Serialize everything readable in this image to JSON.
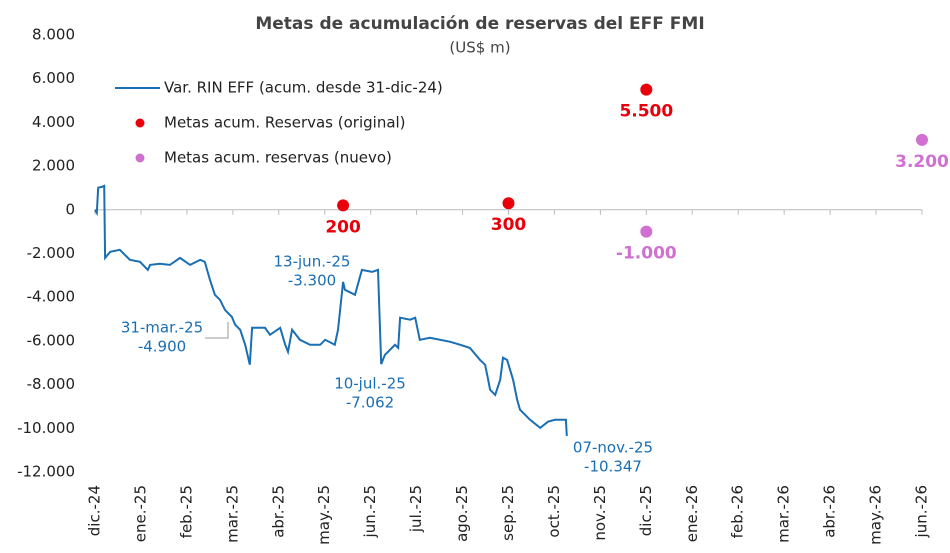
{
  "chart_data": {
    "type": "line",
    "title": "Metas de acumulación de reservas del EFF FMI",
    "subtitle": "(US$ m)",
    "xlim": [
      0,
      18
    ],
    "xticks": [
      {
        "value": 0,
        "label": "dic.-24"
      },
      {
        "value": 1,
        "label": "ene.-25"
      },
      {
        "value": 2,
        "label": "feb.-25"
      },
      {
        "value": 3,
        "label": "mar.-25"
      },
      {
        "value": 4,
        "label": "abr.-25"
      },
      {
        "value": 5,
        "label": "may.-25"
      },
      {
        "value": 6,
        "label": "jun.-25"
      },
      {
        "value": 7,
        "label": "jul.-25"
      },
      {
        "value": 8,
        "label": "ago.-25"
      },
      {
        "value": 9,
        "label": "sep.-25"
      },
      {
        "value": 10,
        "label": "oct.-25"
      },
      {
        "value": 11,
        "label": "nov.-25"
      },
      {
        "value": 12,
        "label": "dic.-25"
      },
      {
        "value": 13,
        "label": "ene.-26"
      },
      {
        "value": 14,
        "label": "feb.-26"
      },
      {
        "value": 15,
        "label": "mar.-26"
      },
      {
        "value": 16,
        "label": "abr.-26"
      },
      {
        "value": 17,
        "label": "may.-26"
      },
      {
        "value": 18,
        "label": "jun.-26"
      }
    ],
    "ylim": [
      -12000,
      8000
    ],
    "yticks": [
      {
        "value": -12000,
        "label": "-12.000"
      },
      {
        "value": -10000,
        "label": "-10.000"
      },
      {
        "value": -8000,
        "label": "-8.000"
      },
      {
        "value": -6000,
        "label": "-6.000"
      },
      {
        "value": -4000,
        "label": "-4.000"
      },
      {
        "value": -2000,
        "label": "-2.000"
      },
      0,
      {
        "value": 2000,
        "label": "2.000"
      },
      {
        "value": 4000,
        "label": "4.000"
      },
      {
        "value": 6000,
        "label": "6.000"
      },
      {
        "value": 8000,
        "label": "8.000"
      }
    ],
    "series": [
      {
        "name": "Var. RIN EFF (acum. desde 31-dic-24)",
        "type": "line",
        "color": "#1a6eb3",
        "x": [
          0,
          0.04,
          0.07,
          0.15,
          0.2,
          0.22,
          0.33,
          0.54,
          0.76,
          0.98,
          1.15,
          1.2,
          1.41,
          1.63,
          1.85,
          2.07,
          2.29,
          2.39,
          2.44,
          2.5,
          2.61,
          2.72,
          2.83,
          2.98,
          3.05,
          3.16,
          3.27,
          3.37,
          3.42,
          3.7,
          3.81,
          4.03,
          4.14,
          4.2,
          4.29,
          4.46,
          4.68,
          4.9,
          5.01,
          5.22,
          5.29,
          5.4,
          5.44,
          5.66,
          5.72,
          5.81,
          6.03,
          6.16,
          6.23,
          6.31,
          6.53,
          6.6,
          6.64,
          6.86,
          6.97,
          7.07,
          7.29,
          7.73,
          7.95,
          8.16,
          8.38,
          8.49,
          8.55,
          8.6,
          8.71,
          8.82,
          8.88,
          8.97,
          9.1,
          9.19,
          9.25,
          9.47,
          9.69,
          9.86,
          10.01,
          10.19,
          10.25,
          10.27
        ],
        "values": [
          0,
          -140,
          1010,
          1050,
          1100,
          -2200,
          -1920,
          -1830,
          -2290,
          -2380,
          -2750,
          -2520,
          -2470,
          -2520,
          -2200,
          -2520,
          -2290,
          -2380,
          -2750,
          -3200,
          -3890,
          -4120,
          -4580,
          -4900,
          -5260,
          -5490,
          -6180,
          -7090,
          -5400,
          -5400,
          -5720,
          -5400,
          -6180,
          -6500,
          -5490,
          -5950,
          -6180,
          -6180,
          -5950,
          -6180,
          -5490,
          -3300,
          -3660,
          -3890,
          -3430,
          -2750,
          -2840,
          -2750,
          -7062,
          -6640,
          -6180,
          -6320,
          -4940,
          -5030,
          -4940,
          -5950,
          -5860,
          -6040,
          -6180,
          -6320,
          -6870,
          -7090,
          -7690,
          -8240,
          -8470,
          -7780,
          -6770,
          -6870,
          -7780,
          -8700,
          -9150,
          -9610,
          -9980,
          -9700,
          -9610,
          -9610,
          -9610,
          -10347
        ]
      },
      {
        "name": "Metas acum. Reservas (original)",
        "type": "scatter",
        "color": "#e8000b",
        "x": [
          5.4,
          9,
          12
        ],
        "values": [
          200,
          300,
          5500
        ],
        "value_labels": [
          "200",
          "300",
          "5.500"
        ]
      },
      {
        "name": "Metas acum. reservas (nuevo)",
        "type": "scatter",
        "color": "#d070d0",
        "x": [
          12,
          18
        ],
        "values": [
          -1000,
          3200
        ],
        "value_labels": [
          "-1.000",
          "3.200"
        ]
      }
    ],
    "annotations": [
      {
        "date": "31-mar.-25",
        "value": "-4.900"
      },
      {
        "date": "13-jun.-25",
        "value": "-3.300"
      },
      {
        "date": "10-jul.-25",
        "value": "-7.062"
      },
      {
        "date": "07-nov.-25",
        "value": "-10.347"
      }
    ],
    "legend": "upper left"
  }
}
